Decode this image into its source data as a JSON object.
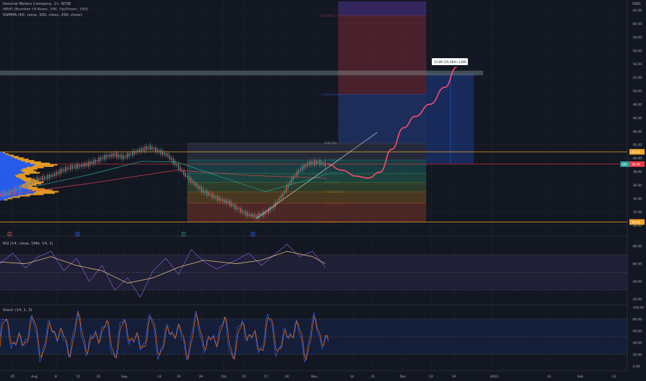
{
  "header": {
    "title": "General Motors Company, 1h, NYSE",
    "currency": "USD"
  },
  "legends": {
    "vrvp": "VRVP (Number Of Rows, 200, Up/Down, 100)",
    "smma": "SSMMA (60, close, 300, close, 200, close)",
    "rsi": "RSI (14, close, SMA, 14, 2)",
    "stoch": "Stoch (14, 1, 3)"
  },
  "colors": {
    "bg": "#131722",
    "grid": "#1e222d",
    "up": "#26a69a",
    "down": "#ef5350",
    "price_line": "#f23645",
    "projection": "#ff4d6d",
    "volume_profile": "#2962ff",
    "volume_profile_up": "#f5a623",
    "rsi_line": "#7e57c2",
    "rsi_signal": "#e0c080"
  },
  "chart_data": {
    "type": "line",
    "symbol": "GM",
    "last_price": "39.09",
    "main_y_ticks": [
      "62.00",
      "60.00",
      "58.00",
      "56.00",
      "54.00",
      "52.00",
      "50.00",
      "48.00",
      "46.00",
      "44.00",
      "42.00",
      "40.00",
      "38.00",
      "36.00",
      "34.00",
      "32.00",
      "30.00"
    ],
    "main_ylim": [
      29.5,
      63.5
    ],
    "x_ticks": [
      "25",
      "Aug",
      "8",
      "15",
      "22",
      "Sep",
      "12",
      "19",
      "26",
      "Oct",
      "10",
      "17",
      "24",
      "Nov",
      "14",
      "21",
      "Dec",
      "12",
      "19",
      "2023",
      "23",
      "Feb",
      "13"
    ],
    "price_path": [
      [
        0,
        34.6
      ],
      [
        3,
        34.8
      ],
      [
        6,
        35.4
      ],
      [
        9,
        35.9
      ],
      [
        12,
        36.7
      ],
      [
        15,
        37.0
      ],
      [
        18,
        37.4
      ],
      [
        21,
        38.1
      ],
      [
        24,
        38.6
      ],
      [
        27,
        38.8
      ],
      [
        30,
        39.1
      ],
      [
        33,
        39.6
      ],
      [
        36,
        40.2
      ],
      [
        39,
        40.5
      ],
      [
        42,
        40.1
      ],
      [
        45,
        40.7
      ],
      [
        48,
        41.2
      ],
      [
        51,
        41.6
      ],
      [
        54,
        41.0
      ],
      [
        57,
        40.4
      ],
      [
        60,
        39.0
      ],
      [
        63,
        37.5
      ],
      [
        66,
        36.2
      ],
      [
        69,
        35.1
      ],
      [
        72,
        34.4
      ],
      [
        75,
        33.8
      ],
      [
        78,
        33.3
      ],
      [
        81,
        32.4
      ],
      [
        84,
        31.6
      ],
      [
        87,
        31.3
      ],
      [
        90,
        31.8
      ],
      [
        93,
        32.8
      ],
      [
        96,
        34.5
      ],
      [
        99,
        36.7
      ],
      [
        102,
        38.3
      ],
      [
        105,
        39.2
      ],
      [
        108,
        39.4
      ],
      [
        111,
        39.0
      ]
    ],
    "price_noise": [
      0.6,
      -0.4,
      0.9,
      -0.7,
      0.3,
      -0.9,
      0.5,
      -0.2,
      0.8,
      -0.6,
      0.2,
      -0.8,
      0.7,
      -0.3,
      0.4,
      -0.5
    ],
    "sma_path": [
      [
        12,
        35.8
      ],
      [
        30,
        37.5
      ],
      [
        48,
        39.5
      ],
      [
        60,
        39.4
      ],
      [
        75,
        37.2
      ],
      [
        90,
        35.0
      ],
      [
        105,
        36.8
      ],
      [
        111,
        37.6
      ]
    ],
    "long_ma_path": [
      [
        0,
        34.4
      ],
      [
        30,
        36.2
      ],
      [
        60,
        38.2
      ],
      [
        85,
        37.4
      ],
      [
        111,
        37.0
      ]
    ],
    "projection_path": [
      [
        111,
        39.1
      ],
      [
        116,
        38.2
      ],
      [
        121,
        37.3
      ],
      [
        125,
        37.0
      ],
      [
        129,
        37.9
      ],
      [
        133,
        41.3
      ],
      [
        137,
        44.5
      ],
      [
        141,
        46.2
      ],
      [
        146,
        48.0
      ],
      [
        151,
        50.5
      ],
      [
        155,
        53.5
      ]
    ],
    "trendline": [
      [
        87,
        31.0
      ],
      [
        128,
        43.8
      ]
    ],
    "fib_levels": [
      {
        "label": "2.618(61.15)",
        "value": 61.15,
        "fill": "#8b2f3a"
      },
      {
        "label": "1.618(49.44)",
        "value": 49.44,
        "fill": "#2b4aa0"
      },
      {
        "label": "1(42.20)",
        "value": 42.2,
        "fill": "#394056"
      },
      {
        "label": "0.786(39.69)",
        "value": 39.69,
        "fill": "#1f6b68"
      },
      {
        "label": "0.618(37.72)",
        "value": 37.72,
        "fill": "#2a7760"
      },
      {
        "label": "0.5(36.34)",
        "value": 36.34,
        "fill": "#4b6b36"
      },
      {
        "label": "0.382(34.96)",
        "value": 34.96,
        "fill": "#8a5f1f"
      },
      {
        "label": "0.236(33.25)",
        "value": 33.25,
        "fill": "#8f3c2a"
      },
      {
        "label": "0(30.48)",
        "value": 30.48,
        "fill": "#6b2131"
      }
    ],
    "fib_top_value": 63.3,
    "target_box": {
      "label": "13.80 (35.38%) 1380",
      "top": 52.5,
      "bottom": 39.2
    },
    "resistance_zone": [
      52.3,
      53.0
    ],
    "level_lines": [
      {
        "value": 40.92,
        "label": "40.92",
        "color": "#f5a623"
      },
      {
        "value": 39.09,
        "label": "39.09",
        "color": "#f23645"
      },
      {
        "value": 30.48,
        "label": "30.48",
        "color": "#f5a623"
      }
    ],
    "event_markers": [
      {
        "label": "E",
        "color": "#ef5350",
        "x": 14
      },
      {
        "label": "D",
        "color": "#2962ff",
        "x": 112
      },
      {
        "label": "T",
        "color": "#26a69a",
        "x": 265
      },
      {
        "label": "D",
        "color": "#2962ff",
        "x": 365
      }
    ],
    "volume_profile_rows": [
      [
        40.8,
        8
      ],
      [
        40.6,
        14
      ],
      [
        40.4,
        22
      ],
      [
        40.2,
        30
      ],
      [
        40.0,
        38
      ],
      [
        39.8,
        46
      ],
      [
        39.6,
        55
      ],
      [
        39.4,
        66
      ],
      [
        39.2,
        80
      ],
      [
        39.0,
        92
      ],
      [
        38.8,
        86
      ],
      [
        38.6,
        70
      ],
      [
        38.4,
        60
      ],
      [
        38.2,
        54
      ],
      [
        38.0,
        58
      ],
      [
        37.8,
        64
      ],
      [
        37.6,
        48
      ],
      [
        37.4,
        40
      ],
      [
        37.2,
        42
      ],
      [
        37.0,
        50
      ],
      [
        36.8,
        56
      ],
      [
        36.6,
        62
      ],
      [
        36.4,
        70
      ],
      [
        36.2,
        66
      ],
      [
        36.0,
        58
      ],
      [
        35.8,
        52
      ],
      [
        35.6,
        60
      ],
      [
        35.4,
        72
      ],
      [
        35.2,
        84
      ],
      [
        35.0,
        94
      ],
      [
        34.8,
        88
      ],
      [
        34.6,
        70
      ],
      [
        34.4,
        48
      ],
      [
        34.2,
        32
      ],
      [
        34.0,
        20
      ],
      [
        33.8,
        12
      ]
    ],
    "rsi_y_ticks": [
      "80.00",
      "60.00",
      "40.00",
      "20.00"
    ],
    "rsi_ylim": [
      15,
      88
    ],
    "rsi_band": [
      30,
      70
    ],
    "rsi_path": [
      [
        0,
        60
      ],
      [
        8,
        72
      ],
      [
        16,
        55
      ],
      [
        24,
        68
      ],
      [
        32,
        74
      ],
      [
        40,
        52
      ],
      [
        48,
        66
      ],
      [
        56,
        40
      ],
      [
        64,
        58
      ],
      [
        72,
        30
      ],
      [
        80,
        44
      ],
      [
        88,
        22
      ],
      [
        96,
        52
      ],
      [
        104,
        66
      ],
      [
        112,
        48
      ],
      [
        120,
        76
      ],
      [
        128,
        62
      ],
      [
        136,
        54
      ],
      [
        148,
        64
      ],
      [
        156,
        72
      ],
      [
        164,
        58
      ],
      [
        172,
        70
      ],
      [
        180,
        82
      ],
      [
        188,
        68
      ],
      [
        196,
        74
      ],
      [
        204,
        56
      ]
    ],
    "rsi_signal_path": [
      [
        0,
        62
      ],
      [
        16,
        60
      ],
      [
        32,
        68
      ],
      [
        48,
        58
      ],
      [
        64,
        52
      ],
      [
        80,
        38
      ],
      [
        96,
        44
      ],
      [
        112,
        56
      ],
      [
        128,
        64
      ],
      [
        148,
        60
      ],
      [
        164,
        64
      ],
      [
        180,
        74
      ],
      [
        196,
        68
      ],
      [
        204,
        60
      ]
    ],
    "stoch_y_ticks": [
      "100.00",
      "80.00",
      "60.00",
      "40.00",
      "20.00",
      "0.00"
    ],
    "stoch_ylim": [
      -2,
      102
    ],
    "stoch_band": [
      20,
      80
    ]
  }
}
